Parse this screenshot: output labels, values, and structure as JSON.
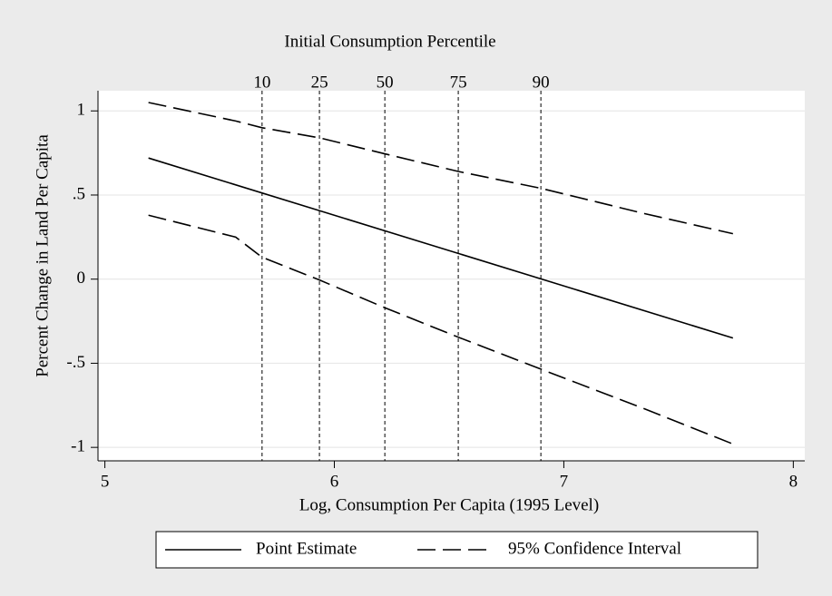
{
  "chart_data": {
    "type": "line",
    "top_axis_title": "Initial Consumption Percentile",
    "xlabel": "Log, Consumption Per Capita (1995 Level)",
    "ylabel": "Percent Change in Land Per Capita",
    "xlim": [
      4.97,
      8.05
    ],
    "ylim": [
      -1.08,
      1.12
    ],
    "xticks": [
      5,
      6,
      7,
      8
    ],
    "yticks": [
      {
        "value": -1,
        "label": "-1"
      },
      {
        "value": -0.5,
        "label": "-.5"
      },
      0,
      {
        "value": 0.5,
        "label": ".5"
      },
      1
    ],
    "grid": true,
    "percentile_lines": [
      {
        "percentile": 10,
        "x": 5.685
      },
      {
        "percentile": 25,
        "x": 5.935
      },
      {
        "percentile": 50,
        "x": 6.22
      },
      {
        "percentile": 75,
        "x": 6.54
      },
      {
        "percentile": 90,
        "x": 6.9
      }
    ],
    "series": [
      {
        "name": "Point Estimate",
        "color": "#000000",
        "style": "solid",
        "x": [
          5.19,
          7.737
        ],
        "values": [
          0.72,
          -0.35
        ]
      },
      {
        "name": "95% Confidence Interval",
        "color": "#000000",
        "style": "dashed",
        "x": [
          5.19,
          5.57,
          5.685,
          5.935,
          6.22,
          6.54,
          6.9,
          7.35,
          7.737
        ],
        "values": [
          1.05,
          0.94,
          0.9,
          0.84,
          0.745,
          0.64,
          0.54,
          0.39,
          0.27
        ],
        "lower_values": [
          0.38,
          0.25,
          0.13,
          -0.005,
          -0.17,
          -0.345,
          -0.535,
          -0.77,
          -0.98
        ]
      }
    ],
    "legend": "bottom"
  }
}
